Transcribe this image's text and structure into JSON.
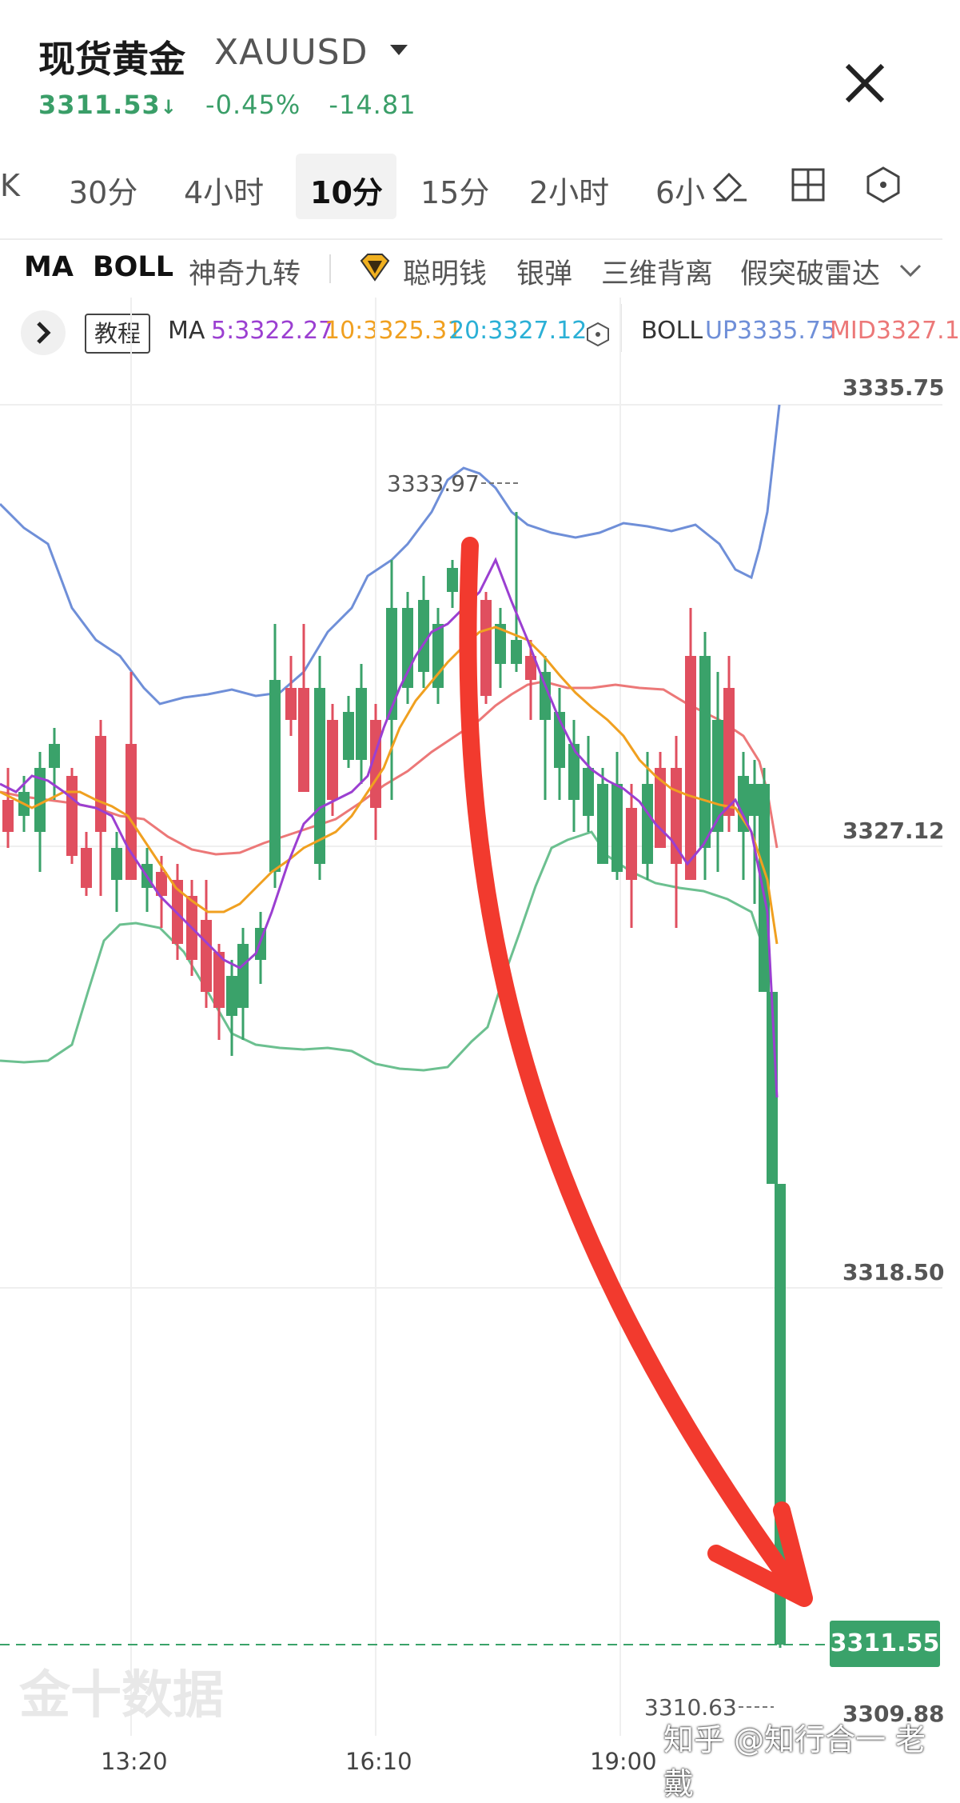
{
  "header": {
    "title_cn": "现货黄金",
    "symbol": "XAUUSD",
    "price": "3311.53",
    "price_arrow": "↓",
    "change_pct": "-0.45%",
    "change_abs": "-14.81"
  },
  "timeframes": {
    "items": [
      "K",
      "30分",
      "4小时",
      "10分",
      "15分",
      "2小时",
      "6小"
    ],
    "active": "10分"
  },
  "tools": [
    "draw-icon",
    "grid-icon",
    "hexagon-settings-icon"
  ],
  "indicators": {
    "items": [
      "MA",
      "BOLL",
      "神奇九转",
      "聪明钱",
      "银弹",
      "三维背离",
      "假突破雷达"
    ],
    "expand_icon": "chevron-down-icon"
  },
  "legend": {
    "tutorial": "教程",
    "ma_label": "MA",
    "ma5": "5:3322.27",
    "ma10": "10:3325.31",
    "ma20": "20:3327.12",
    "boll_label": "BOLL",
    "boll_up": "UP3335.75",
    "boll_mid": "MID3327.1"
  },
  "colors": {
    "up": "#e04f5f",
    "down": "#3aa26a",
    "ma5": "#9b3fd1",
    "ma10": "#f0a020",
    "ma20": "#2bb0d6",
    "boll_up": "#6f8fd8",
    "boll_mid": "#ec7878",
    "boll_low": "#6cc090"
  },
  "price_axis": [
    "3335.75",
    "3327.12",
    "3318.50",
    "3309.88"
  ],
  "time_axis": [
    "13:20",
    "16:10",
    "19:00"
  ],
  "annotations": {
    "high_mark": "3333.97",
    "low_mark": "3310.63",
    "current_price": "3311.55"
  },
  "watermark": "金十数据",
  "credit": "知乎 @知行合一 老戴"
}
